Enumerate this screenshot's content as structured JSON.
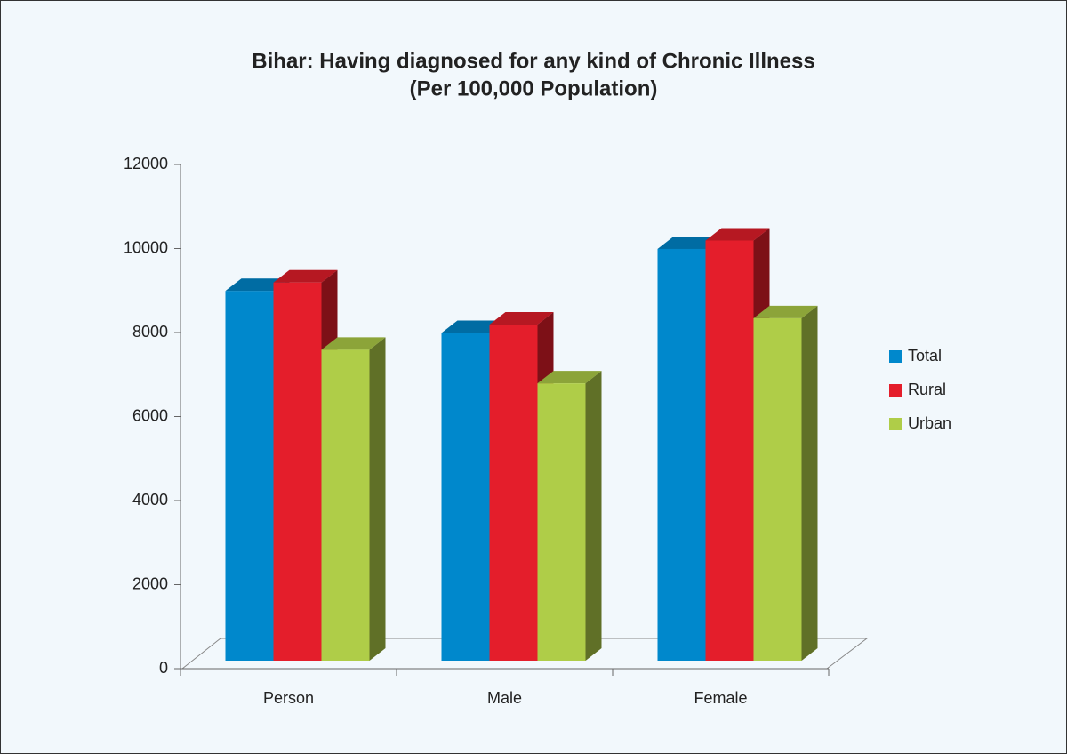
{
  "chart_data": {
    "type": "bar3d",
    "title": "Bihar: Having diagnosed for any kind of Chronic Illness",
    "subtitle": "(Per 100,000 Population)",
    "categories": [
      "Person",
      "Male",
      "Female"
    ],
    "series": [
      {
        "name": "Total",
        "color": "#0088cc",
        "values": [
          8800,
          7800,
          9800
        ]
      },
      {
        "name": "Rural",
        "color": "#e41e2b",
        "values": [
          9000,
          8000,
          10000
        ]
      },
      {
        "name": "Urban",
        "color": "#afcd48",
        "values": [
          7400,
          6600,
          8150
        ]
      }
    ],
    "ylim": [
      0,
      12000
    ],
    "yticks": [
      0,
      2000,
      4000,
      6000,
      8000,
      10000,
      12000
    ],
    "legend": "right"
  }
}
